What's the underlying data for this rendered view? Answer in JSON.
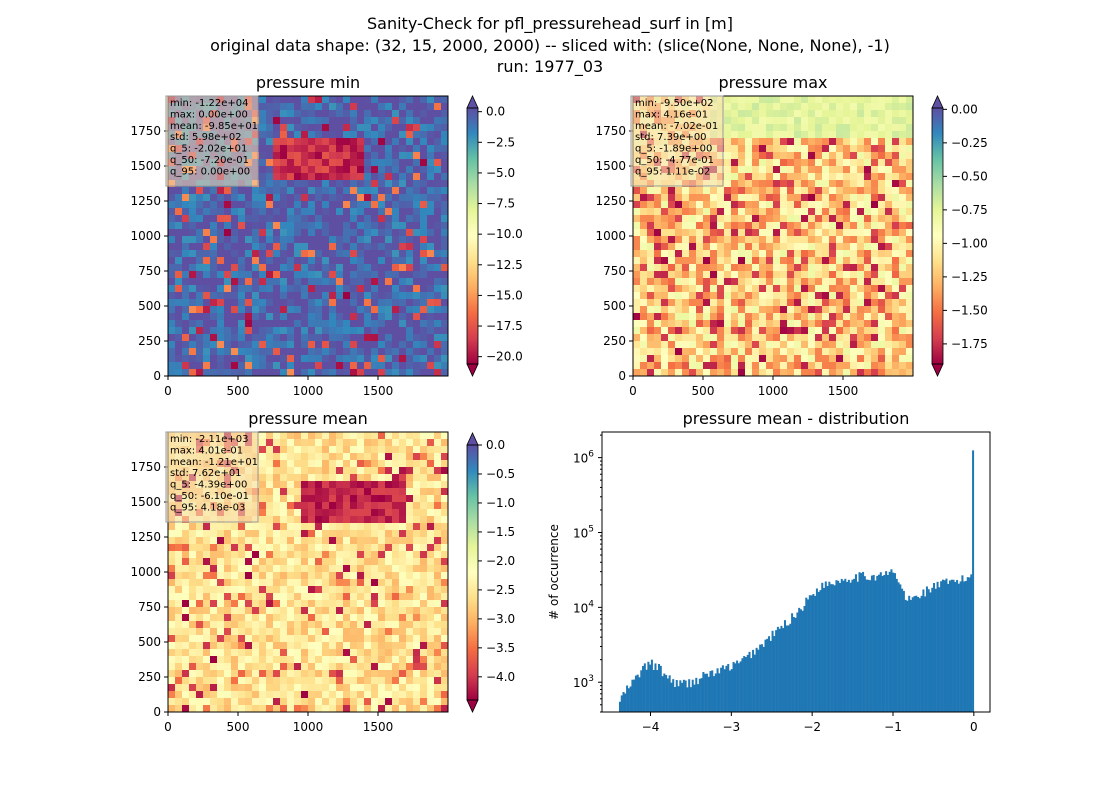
{
  "title_lines": [
    "Sanity-Check for pfl_pressurehead_surf in [m]",
    "original data shape: (32, 15, 2000, 2000) -- sliced with: (slice(None, None, None), -1)",
    "run: 1977_03"
  ],
  "chart_data": [
    {
      "type": "heatmap",
      "title": "pressure min",
      "colormap": "Spectral",
      "x_ticks": [
        "0",
        "500",
        "1000",
        "1500"
      ],
      "y_ticks": [
        "0",
        "250",
        "500",
        "750",
        "1000",
        "1250",
        "1500",
        "1750"
      ],
      "xlim": [
        0,
        2000
      ],
      "ylim": [
        0,
        2000
      ],
      "colorbar": {
        "ticks": [
          "0.0",
          "−2.5",
          "−5.0",
          "−7.5",
          "−10.0",
          "−12.5",
          "−15.0",
          "−17.5",
          "−20.0"
        ],
        "range": [
          -20.6,
          0.3
        ],
        "extend": "both"
      },
      "stats": [
        "min: -1.22e+04",
        "max: 0.00e+00",
        "mean: -9.85e+01",
        "std: 5.98e+02",
        "q_5: -2.02e+01",
        "q_50: -7.20e-01",
        "q_95: 0.00e+00"
      ]
    },
    {
      "type": "heatmap",
      "title": "pressure max",
      "colormap": "Spectral",
      "x_ticks": [
        "0",
        "500",
        "1000",
        "1500"
      ],
      "y_ticks": [
        "0",
        "250",
        "500",
        "750",
        "1000",
        "1250",
        "1500",
        "1750"
      ],
      "xlim": [
        0,
        2000
      ],
      "ylim": [
        0,
        2000
      ],
      "colorbar": {
        "ticks": [
          "0.00",
          "−0.25",
          "−0.50",
          "−0.75",
          "−1.00",
          "−1.25",
          "−1.50",
          "−1.75"
        ],
        "range": [
          -1.9,
          0.01
        ],
        "extend": "both"
      },
      "stats": [
        "min: -9.50e+02",
        "max: 4.16e-01",
        "mean: -7.02e-01",
        "std: 7.39e+00",
        "q_5: -1.89e+00",
        "q_50: -4.77e-01",
        "q_95: 1.11e-02"
      ]
    },
    {
      "type": "heatmap",
      "title": "pressure mean",
      "colormap": "Spectral",
      "x_ticks": [
        "0",
        "500",
        "1000",
        "1500"
      ],
      "y_ticks": [
        "0",
        "250",
        "500",
        "750",
        "1000",
        "1250",
        "1500",
        "1750"
      ],
      "xlim": [
        0,
        2000
      ],
      "ylim": [
        0,
        2000
      ],
      "colorbar": {
        "ticks": [
          "0.0",
          "−0.5",
          "−1.0",
          "−1.5",
          "−2.0",
          "−2.5",
          "−3.0",
          "−3.5",
          "−4.0"
        ],
        "range": [
          -4.4,
          0.0
        ],
        "extend": "both"
      },
      "stats": [
        "min: -2.11e+03",
        "max: 4.01e-01",
        "mean: -1.21e+01",
        "std: 7.62e+01",
        "q_5: -4.39e+00",
        "q_50: -6.10e-01",
        "q_95: 4.18e-03"
      ]
    },
    {
      "type": "bar",
      "title": "pressure mean - distribution",
      "ylabel": "# of occurrence",
      "yscale": "log",
      "xlim": [
        -4.6,
        0.2
      ],
      "ylim": [
        400,
        2200000
      ],
      "x_ticks": [
        "−4",
        "−3",
        "−2",
        "−1",
        "0"
      ],
      "y_ticks": [
        "10",
        "10",
        "10"
      ],
      "y_tick_exponents": [
        "3",
        "4",
        "5",
        "6"
      ],
      "y_tick_values": [
        1000,
        10000,
        100000,
        1000000
      ],
      "bins": [
        -4.39,
        0.0
      ],
      "color": "#1f77b4",
      "shape": [
        [
          -4.39,
          550
        ],
        [
          -4.3,
          780
        ],
        [
          -4.2,
          1050
        ],
        [
          -4.1,
          1500
        ],
        [
          -4.0,
          1800
        ],
        [
          -3.9,
          1550
        ],
        [
          -3.8,
          1200
        ],
        [
          -3.7,
          1000
        ],
        [
          -3.6,
          950
        ],
        [
          -3.5,
          1000
        ],
        [
          -3.4,
          1100
        ],
        [
          -3.3,
          1300
        ],
        [
          -3.2,
          1350
        ],
        [
          -3.1,
          1500
        ],
        [
          -3.0,
          1650
        ],
        [
          -2.9,
          1800
        ],
        [
          -2.8,
          2200
        ],
        [
          -2.7,
          2700
        ],
        [
          -2.6,
          3300
        ],
        [
          -2.5,
          4200
        ],
        [
          -2.4,
          5200
        ],
        [
          -2.3,
          6500
        ],
        [
          -2.2,
          8300
        ],
        [
          -2.1,
          11000
        ],
        [
          -2.0,
          15000
        ],
        [
          -1.9,
          19000
        ],
        [
          -1.8,
          21000
        ],
        [
          -1.7,
          22500
        ],
        [
          -1.6,
          24000
        ],
        [
          -1.5,
          25500
        ],
        [
          -1.4,
          26000
        ],
        [
          -1.3,
          26000
        ],
        [
          -1.2,
          26500
        ],
        [
          -1.1,
          27000
        ],
        [
          -1.0,
          30000
        ],
        [
          -0.95,
          25000
        ],
        [
          -0.9,
          18000
        ],
        [
          -0.85,
          14000
        ],
        [
          -0.8,
          12500
        ],
        [
          -0.7,
          14000
        ],
        [
          -0.6,
          16500
        ],
        [
          -0.5,
          19000
        ],
        [
          -0.4,
          20500
        ],
        [
          -0.3,
          21500
        ],
        [
          -0.2,
          22500
        ],
        [
          -0.1,
          24000
        ],
        [
          -0.03,
          27000
        ],
        [
          0.0,
          1250000
        ]
      ]
    }
  ]
}
